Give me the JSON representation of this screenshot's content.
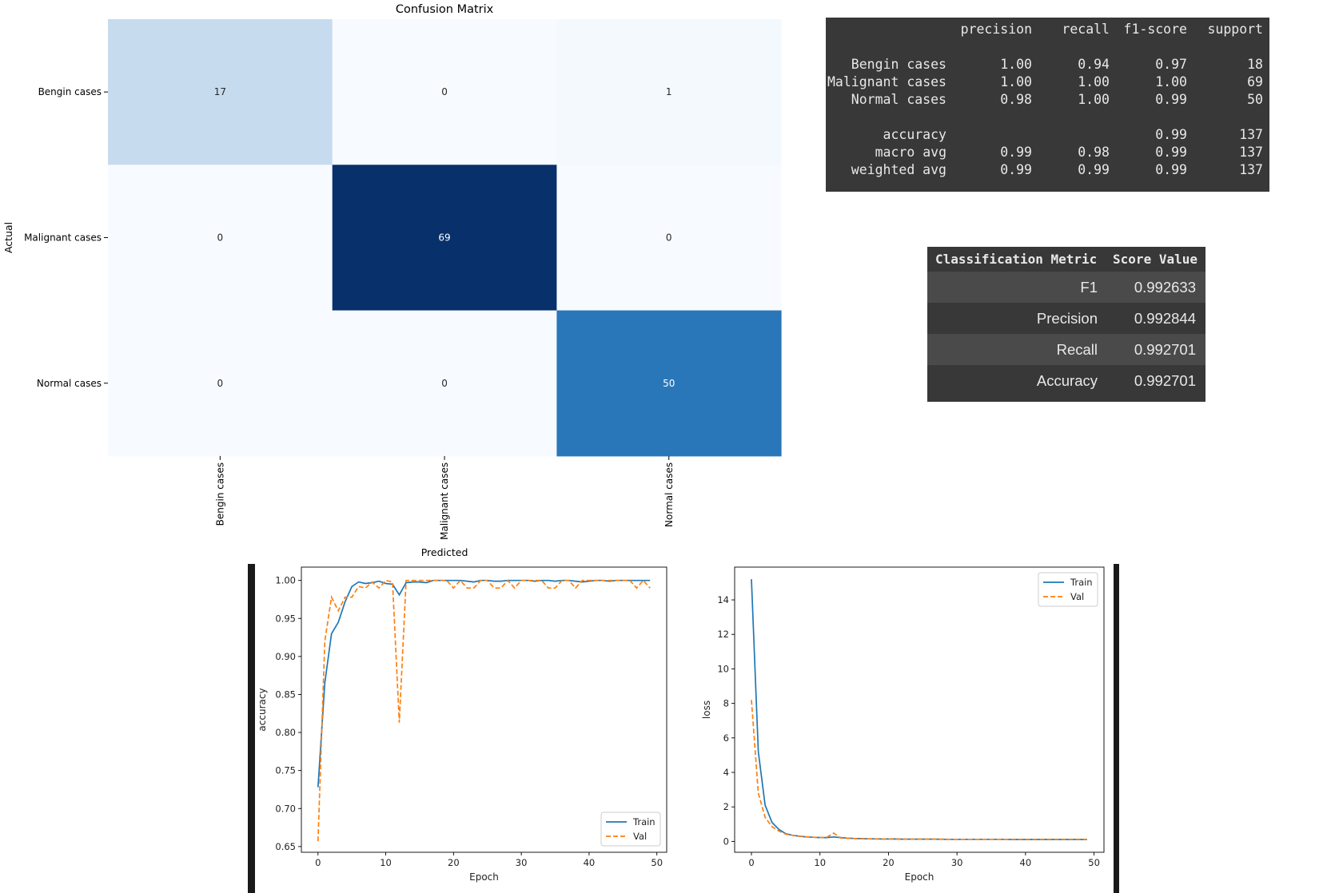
{
  "chart_data": [
    {
      "type": "heatmap",
      "title": "Confusion Matrix",
      "xlabel": "Predicted",
      "ylabel": "Actual",
      "row_labels": [
        "Bengin cases",
        "Malignant cases",
        "Normal cases"
      ],
      "col_labels": [
        "Bengin cases",
        "Malignant cases",
        "Normal cases"
      ],
      "values": [
        [
          17,
          0,
          1
        ],
        [
          0,
          69,
          0
        ],
        [
          0,
          0,
          50
        ]
      ],
      "colormap": "Blues",
      "colorbar": false
    },
    {
      "type": "table",
      "name": "classification-report",
      "headers": [
        "",
        "precision",
        "recall",
        "f1-score",
        "support"
      ],
      "rows": [
        [
          "Bengin cases",
          "1.00",
          "0.94",
          "0.97",
          "18"
        ],
        [
          "Malignant cases",
          "1.00",
          "1.00",
          "1.00",
          "69"
        ],
        [
          "Normal cases",
          "0.98",
          "1.00",
          "0.99",
          "50"
        ],
        [
          "accuracy",
          "",
          "",
          "0.99",
          "137"
        ],
        [
          "macro avg",
          "0.99",
          "0.98",
          "0.99",
          "137"
        ],
        [
          "weighted avg",
          "0.99",
          "0.99",
          "0.99",
          "137"
        ]
      ]
    },
    {
      "type": "table",
      "name": "metrics-summary",
      "headers": [
        "Classification Metric",
        "Score Value"
      ],
      "rows": [
        [
          "F1",
          "0.992633"
        ],
        [
          "Precision",
          "0.992844"
        ],
        [
          "Recall",
          "0.992701"
        ],
        [
          "Accuracy",
          "0.992701"
        ]
      ]
    },
    {
      "type": "line",
      "xlabel": "Epoch",
      "ylabel": "accuracy",
      "xlim": [
        -2.45,
        51.45
      ],
      "ylim": [
        0.6425,
        1.0175
      ],
      "xticks": [
        0,
        10,
        20,
        30,
        40,
        50
      ],
      "yticks": [
        0.65,
        0.7,
        0.75,
        0.8,
        0.85,
        0.9,
        0.95,
        1.0
      ],
      "legend": "lower-right",
      "x": [
        0,
        1,
        2,
        3,
        4,
        5,
        6,
        7,
        8,
        9,
        10,
        11,
        12,
        13,
        14,
        15,
        16,
        17,
        18,
        19,
        20,
        21,
        22,
        23,
        24,
        25,
        26,
        27,
        28,
        29,
        30,
        31,
        32,
        33,
        34,
        35,
        36,
        37,
        38,
        39,
        40,
        41,
        42,
        43,
        44,
        45,
        46,
        47,
        48,
        49
      ],
      "series": [
        {
          "name": "Train",
          "color": "#1f77b4",
          "dash": "solid",
          "values": [
            0.728,
            0.865,
            0.93,
            0.945,
            0.972,
            0.992,
            0.998,
            0.996,
            0.997,
            0.999,
            0.996,
            0.995,
            0.981,
            0.997,
            0.998,
            0.998,
            0.997,
            1.0,
            1.0,
            1.0,
            1.0,
            1.0,
            0.999,
            0.998,
            1.0,
            1.0,
            0.999,
            0.999,
            1.0,
            1.0,
            1.0,
            1.0,
            0.999,
            1.0,
            1.0,
            0.999,
            1.0,
            1.0,
            0.999,
            0.998,
            0.999,
            1.0,
            1.0,
            0.999,
            1.0,
            1.0,
            1.0,
            1.0,
            1.0,
            1.0
          ]
        },
        {
          "name": "Val",
          "color": "#ff7f0e",
          "dash": "dashed",
          "values": [
            0.657,
            0.92,
            0.978,
            0.96,
            0.978,
            0.978,
            0.992,
            0.99,
            0.998,
            0.99,
            1.0,
            0.998,
            0.813,
            1.0,
            1.0,
            1.0,
            1.0,
            1.0,
            1.0,
            1.0,
            0.99,
            1.0,
            0.99,
            0.99,
            1.0,
            1.0,
            0.99,
            0.99,
            1.0,
            0.99,
            1.0,
            1.0,
            1.0,
            1.0,
            0.99,
            0.99,
            1.0,
            1.0,
            0.99,
            1.0,
            1.0,
            1.0,
            1.0,
            1.0,
            1.0,
            1.0,
            1.0,
            0.99,
            1.0,
            0.99
          ]
        }
      ]
    },
    {
      "type": "line",
      "xlabel": "Epoch",
      "ylabel": "loss",
      "xlim": [
        -2.45,
        51.45
      ],
      "ylim": [
        -0.63,
        15.9
      ],
      "xticks": [
        0,
        10,
        20,
        30,
        40,
        50
      ],
      "yticks": [
        0,
        2,
        4,
        6,
        8,
        10,
        12,
        14
      ],
      "legend": "top-right",
      "x": [
        0,
        1,
        2,
        3,
        4,
        5,
        6,
        7,
        8,
        9,
        10,
        11,
        12,
        13,
        14,
        15,
        16,
        17,
        18,
        19,
        20,
        21,
        22,
        23,
        24,
        25,
        26,
        27,
        28,
        29,
        30,
        31,
        32,
        33,
        34,
        35,
        36,
        37,
        38,
        39,
        40,
        41,
        42,
        43,
        44,
        45,
        46,
        47,
        48,
        49
      ],
      "series": [
        {
          "name": "Train",
          "color": "#1f77b4",
          "dash": "solid",
          "values": [
            15.2,
            5.2,
            2.1,
            1.1,
            0.7,
            0.45,
            0.35,
            0.3,
            0.26,
            0.24,
            0.22,
            0.22,
            0.26,
            0.22,
            0.19,
            0.17,
            0.16,
            0.15,
            0.15,
            0.14,
            0.14,
            0.14,
            0.13,
            0.13,
            0.13,
            0.13,
            0.13,
            0.13,
            0.12,
            0.12,
            0.12,
            0.12,
            0.12,
            0.12,
            0.12,
            0.12,
            0.12,
            0.12,
            0.11,
            0.11,
            0.11,
            0.11,
            0.11,
            0.11,
            0.11,
            0.11,
            0.11,
            0.11,
            0.11,
            0.11
          ]
        },
        {
          "name": "Val",
          "color": "#ff7f0e",
          "dash": "dashed",
          "values": [
            8.2,
            2.8,
            1.4,
            0.85,
            0.6,
            0.42,
            0.35,
            0.3,
            0.27,
            0.24,
            0.22,
            0.24,
            0.48,
            0.2,
            0.18,
            0.16,
            0.15,
            0.15,
            0.14,
            0.14,
            0.14,
            0.13,
            0.13,
            0.13,
            0.13,
            0.13,
            0.13,
            0.13,
            0.13,
            0.12,
            0.12,
            0.12,
            0.12,
            0.12,
            0.12,
            0.12,
            0.12,
            0.12,
            0.12,
            0.12,
            0.12,
            0.12,
            0.12,
            0.12,
            0.12,
            0.12,
            0.12,
            0.12,
            0.12,
            0.12
          ]
        }
      ]
    }
  ]
}
